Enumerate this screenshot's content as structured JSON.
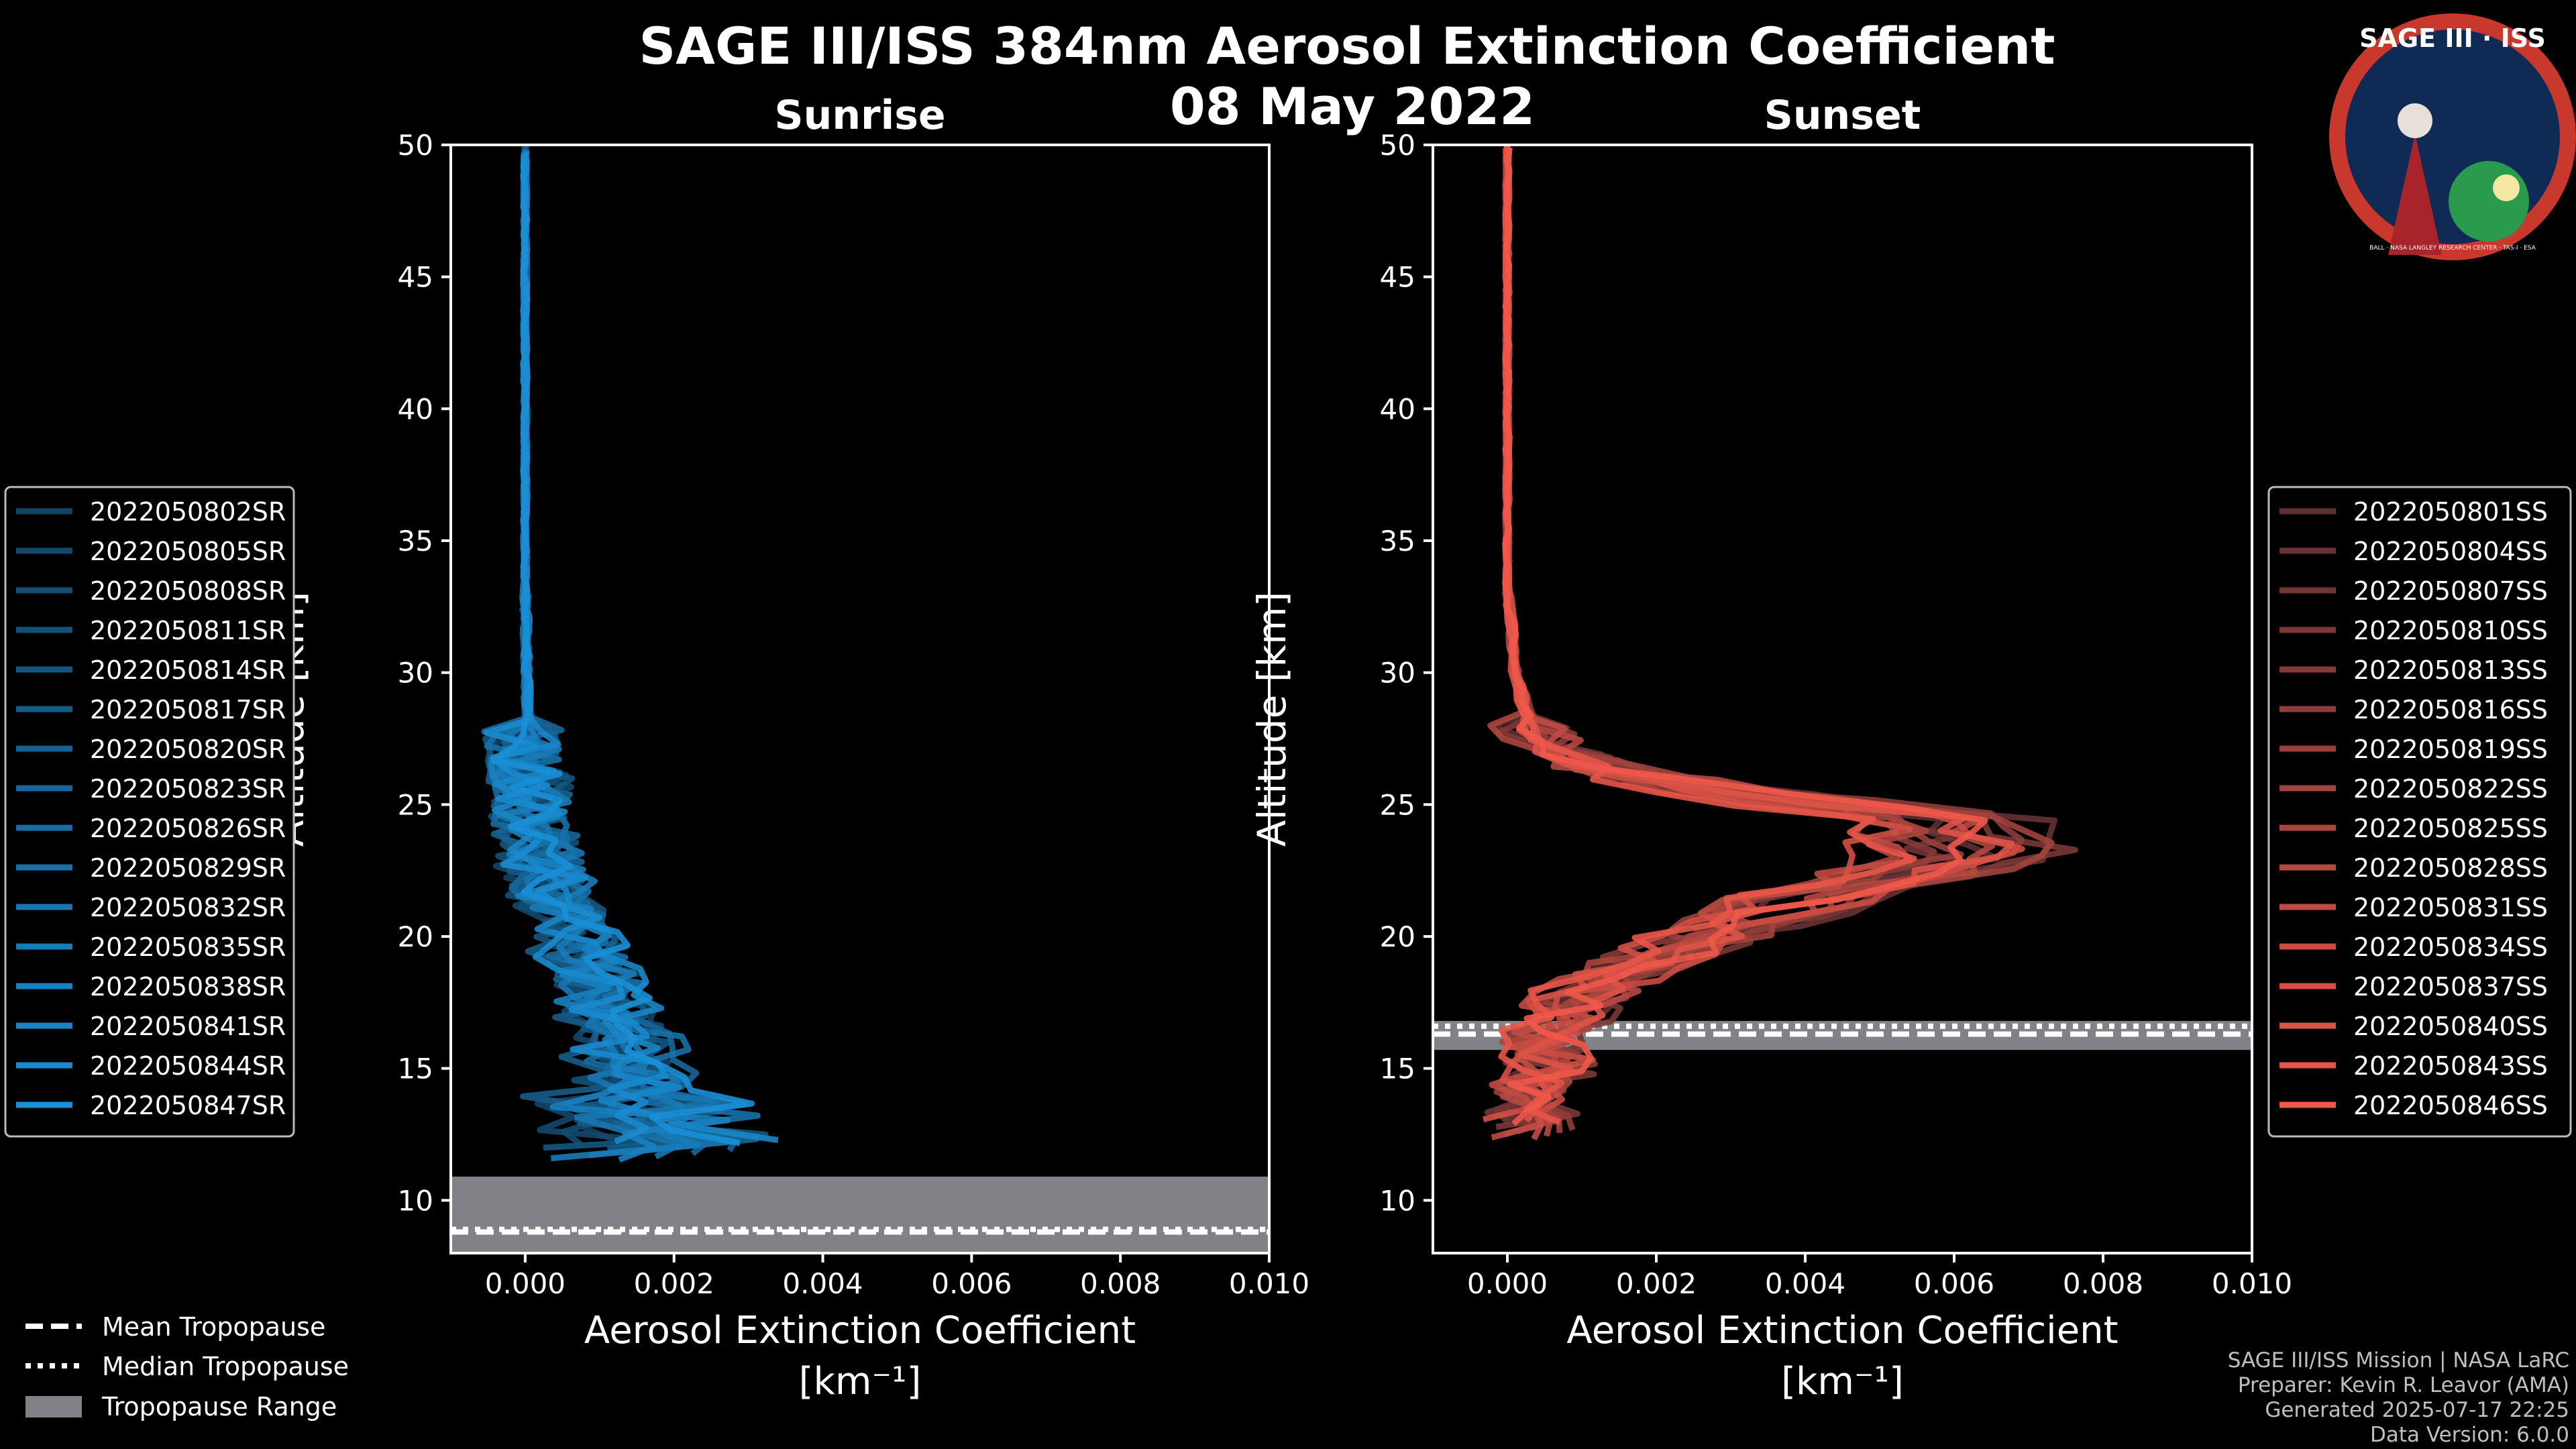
{
  "title": "SAGE III/ISS 384nm Aerosol Extinction Coefficient",
  "date": "08 May 2022",
  "logo": {
    "text": "SAGE III · ISS",
    "ring_text": "BALL · NASA LANGLEY RESEARCH CENTER · TAS-I · ESA"
  },
  "legend_common": {
    "mean": "Mean Tropopause",
    "median": "Median Tropopause",
    "range": "Tropopause Range"
  },
  "credits": [
    "SAGE III/ISS Mission | NASA LaRC",
    "Preparer: Kevin R. Leavor (AMA)",
    "Generated 2025-07-17 22:25",
    "Data Version: 6.0.0"
  ],
  "colors": {
    "sunrise": "#1a8fd6",
    "sunset": "#f0584a",
    "tropo_band": "#808288"
  },
  "chart_data": [
    {
      "type": "line",
      "title": "Sunrise",
      "xlabel": "Aerosol Extinction Coefficient",
      "xunit": "[km⁻¹]",
      "ylabel": "Altitude [km]",
      "xlim": [
        -0.001,
        0.01
      ],
      "ylim": [
        8,
        50
      ],
      "xticks": [
        "0.000",
        "0.002",
        "0.004",
        "0.006",
        "0.008",
        "0.010"
      ],
      "yticks": [
        "10",
        "15",
        "20",
        "25",
        "30",
        "35",
        "40",
        "45",
        "50"
      ],
      "tropopause": {
        "mean": 8.8,
        "median": 8.9,
        "range": [
          8.0,
          10.9
        ]
      },
      "profile": {
        "lowest": 11.5,
        "points": [
          [
            11.5,
            0.0013
          ],
          [
            12.5,
            0.0019
          ],
          [
            13.5,
            0.0017
          ],
          [
            15,
            0.0015
          ],
          [
            16.5,
            0.0012
          ],
          [
            18,
            0.001
          ],
          [
            20,
            0.0007
          ],
          [
            22,
            0.0003
          ],
          [
            24,
            0.0001
          ],
          [
            27,
            5e-05
          ],
          [
            30,
            2e-05
          ],
          [
            35,
            0.0
          ],
          [
            40,
            0.0
          ],
          [
            45,
            0.0
          ],
          [
            50,
            0.0
          ]
        ]
      },
      "series": [
        {
          "name": "2022050802SR"
        },
        {
          "name": "2022050805SR"
        },
        {
          "name": "2022050808SR"
        },
        {
          "name": "2022050811SR"
        },
        {
          "name": "2022050814SR"
        },
        {
          "name": "2022050817SR"
        },
        {
          "name": "2022050820SR"
        },
        {
          "name": "2022050823SR"
        },
        {
          "name": "2022050826SR"
        },
        {
          "name": "2022050829SR"
        },
        {
          "name": "2022050832SR"
        },
        {
          "name": "2022050835SR"
        },
        {
          "name": "2022050838SR"
        },
        {
          "name": "2022050841SR"
        },
        {
          "name": "2022050844SR"
        },
        {
          "name": "2022050847SR"
        }
      ]
    },
    {
      "type": "line",
      "title": "Sunset",
      "xlabel": "Aerosol Extinction Coefficient",
      "xunit": "[km⁻¹]",
      "ylabel": "Altitude [km]",
      "xlim": [
        -0.001,
        0.01
      ],
      "ylim": [
        8,
        50
      ],
      "xticks": [
        "0.000",
        "0.002",
        "0.004",
        "0.006",
        "0.008",
        "0.010"
      ],
      "yticks": [
        "10",
        "15",
        "20",
        "25",
        "30",
        "35",
        "40",
        "45",
        "50"
      ],
      "tropopause": {
        "mean": 16.3,
        "median": 16.6,
        "range": [
          15.7,
          16.8
        ]
      },
      "profile": {
        "lowest": 12.3,
        "points": [
          [
            12.3,
            0.0002
          ],
          [
            13.5,
            0.0003
          ],
          [
            15,
            0.0005
          ],
          [
            16.5,
            0.0006
          ],
          [
            17.5,
            0.0008
          ],
          [
            19,
            0.0017
          ],
          [
            20.5,
            0.003
          ],
          [
            22,
            0.0045
          ],
          [
            23,
            0.006
          ],
          [
            24.5,
            0.0055
          ],
          [
            25.5,
            0.0028
          ],
          [
            26.5,
            0.0009
          ],
          [
            28,
            0.0003
          ],
          [
            30,
            0.0001
          ],
          [
            33,
            2e-05
          ],
          [
            40,
            0.0
          ],
          [
            50,
            0.0
          ]
        ]
      },
      "series": [
        {
          "name": "2022050801SS"
        },
        {
          "name": "2022050804SS"
        },
        {
          "name": "2022050807SS"
        },
        {
          "name": "2022050810SS"
        },
        {
          "name": "2022050813SS"
        },
        {
          "name": "2022050816SS"
        },
        {
          "name": "2022050819SS"
        },
        {
          "name": "2022050822SS"
        },
        {
          "name": "2022050825SS"
        },
        {
          "name": "2022050828SS"
        },
        {
          "name": "2022050831SS"
        },
        {
          "name": "2022050834SS"
        },
        {
          "name": "2022050837SS"
        },
        {
          "name": "2022050840SS"
        },
        {
          "name": "2022050843SS"
        },
        {
          "name": "2022050846SS"
        }
      ]
    }
  ]
}
